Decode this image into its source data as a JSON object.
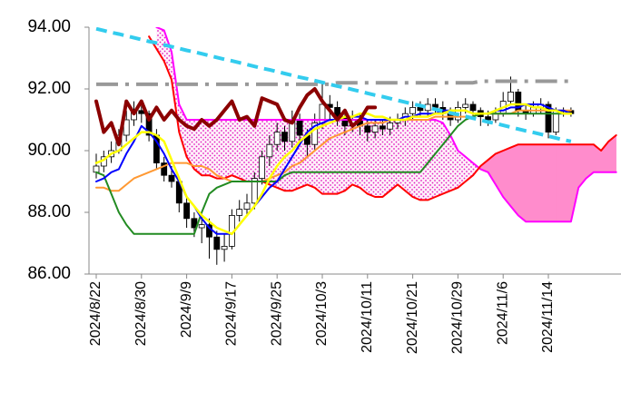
{
  "chart_data": {
    "type": "candlestick",
    "categories": [
      "2024/8/22",
      null,
      null,
      null,
      null,
      null,
      "2024/8/30",
      null,
      null,
      null,
      null,
      null,
      "2024/9/9",
      null,
      null,
      null,
      null,
      null,
      "2024/9/17",
      null,
      null,
      null,
      null,
      null,
      "2024/9/25",
      null,
      null,
      null,
      null,
      null,
      "2024/10/3",
      null,
      null,
      null,
      null,
      null,
      "2024/10/11",
      null,
      null,
      null,
      null,
      null,
      "2024/10/21",
      null,
      null,
      null,
      null,
      null,
      "2024/10/29",
      null,
      null,
      null,
      null,
      null,
      "2024/11/6",
      null,
      null,
      null,
      null,
      null,
      "2024/11/14",
      null,
      null,
      null,
      null,
      null,
      null,
      null,
      null,
      null
    ],
    "ylim": [
      86,
      94
    ],
    "yticks": [
      {
        "value": 86,
        "label": "86.00"
      },
      {
        "value": 88,
        "label": "88.00"
      },
      {
        "value": 90,
        "label": "90.00"
      },
      {
        "value": 92,
        "label": "92.00"
      },
      {
        "value": 94,
        "label": "94.00"
      }
    ],
    "up_color": "#ffffff",
    "down_color": "#000000",
    "ohlc": [
      [
        89.3,
        89.9,
        89.1,
        89.5
      ],
      [
        89.5,
        90.0,
        89.3,
        89.8
      ],
      [
        89.8,
        90.3,
        89.6,
        90.0
      ],
      [
        90.0,
        90.7,
        89.9,
        90.5
      ],
      [
        90.5,
        91.3,
        90.3,
        91.0
      ],
      [
        91.0,
        91.6,
        90.8,
        91.3
      ],
      [
        91.3,
        91.5,
        90.9,
        91.2
      ],
      [
        91.2,
        91.3,
        90.3,
        90.5
      ],
      [
        90.5,
        90.7,
        89.4,
        89.6
      ],
      [
        89.6,
        89.8,
        89.0,
        89.2
      ],
      [
        89.2,
        89.5,
        88.8,
        89.0
      ],
      [
        89.0,
        89.1,
        88.0,
        88.3
      ],
      [
        88.3,
        88.5,
        87.5,
        87.8
      ],
      [
        87.8,
        88.0,
        87.2,
        87.5
      ],
      [
        87.5,
        87.9,
        87.0,
        87.6
      ],
      [
        87.6,
        87.8,
        86.5,
        87.2
      ],
      [
        87.2,
        87.4,
        86.3,
        86.8
      ],
      [
        86.8,
        87.3,
        86.4,
        86.9
      ],
      [
        86.9,
        88.1,
        86.8,
        87.9
      ],
      [
        87.9,
        88.4,
        87.7,
        88.1
      ],
      [
        88.1,
        88.6,
        87.9,
        88.3
      ],
      [
        88.3,
        89.3,
        88.1,
        89.1
      ],
      [
        89.1,
        90.0,
        88.9,
        89.8
      ],
      [
        89.8,
        90.5,
        89.5,
        90.2
      ],
      [
        90.2,
        90.9,
        90.0,
        90.6
      ],
      [
        90.6,
        90.8,
        90.0,
        90.3
      ],
      [
        90.3,
        91.3,
        90.1,
        91.0
      ],
      [
        91.0,
        91.2,
        90.2,
        90.5
      ],
      [
        90.5,
        90.7,
        89.8,
        90.2
      ],
      [
        90.2,
        91.2,
        90.0,
        90.9
      ],
      [
        90.9,
        92.2,
        90.7,
        91.5
      ],
      [
        91.5,
        91.8,
        91.0,
        91.4
      ],
      [
        91.4,
        91.6,
        90.8,
        91.1
      ],
      [
        91.1,
        91.3,
        90.5,
        90.8
      ],
      [
        90.8,
        91.3,
        90.6,
        91.0
      ],
      [
        91.0,
        91.2,
        90.5,
        90.8
      ],
      [
        90.8,
        91.0,
        90.3,
        90.6
      ],
      [
        90.6,
        91.0,
        90.4,
        90.8
      ],
      [
        90.8,
        91.0,
        90.5,
        90.7
      ],
      [
        90.7,
        91.1,
        90.5,
        90.9
      ],
      [
        90.9,
        91.2,
        90.7,
        91.0
      ],
      [
        91.0,
        91.4,
        90.8,
        91.2
      ],
      [
        91.2,
        91.6,
        91.0,
        91.4
      ],
      [
        91.4,
        91.6,
        91.1,
        91.3
      ],
      [
        91.3,
        91.7,
        91.1,
        91.5
      ],
      [
        91.5,
        91.7,
        91.2,
        91.4
      ],
      [
        91.4,
        91.6,
        91.0,
        91.2
      ],
      [
        91.2,
        91.4,
        90.8,
        91.0
      ],
      [
        91.0,
        91.6,
        90.9,
        91.4
      ],
      [
        91.4,
        91.7,
        91.2,
        91.5
      ],
      [
        91.5,
        91.6,
        91.0,
        91.3
      ],
      [
        91.3,
        91.4,
        90.8,
        91.1
      ],
      [
        91.1,
        91.3,
        90.8,
        91.0
      ],
      [
        91.0,
        91.4,
        90.9,
        91.2
      ],
      [
        91.2,
        91.9,
        91.1,
        91.6
      ],
      [
        91.6,
        92.4,
        91.5,
        91.9
      ],
      [
        91.9,
        92.0,
        91.1,
        91.3
      ],
      [
        91.3,
        91.5,
        91.0,
        91.2
      ],
      [
        91.2,
        91.6,
        91.1,
        91.4
      ],
      [
        91.4,
        91.7,
        91.2,
        91.5
      ],
      [
        91.5,
        91.6,
        90.4,
        90.6
      ],
      [
        90.6,
        91.4,
        90.5,
        91.3
      ],
      [
        91.3,
        91.4,
        91.1,
        91.3
      ],
      [
        91.3,
        91.4,
        91.1,
        91.2
      ]
    ],
    "cloud_color": "#ff8ccc",
    "senkou_a": {
      "color": "#ff00ff",
      "values": [
        null,
        null,
        null,
        null,
        null,
        null,
        null,
        null,
        94.0,
        93.9,
        93.2,
        91.5,
        91.0,
        91.0,
        91.0,
        91.0,
        91.0,
        91.0,
        91.0,
        91.0,
        91.0,
        91.0,
        91.0,
        91.0,
        91.0,
        91.0,
        91.0,
        91.0,
        91.0,
        91.0,
        91.0,
        91.0,
        91.0,
        91.0,
        91.0,
        91.0,
        91.0,
        91.0,
        91.0,
        91.0,
        91.0,
        91.0,
        91.0,
        91.0,
        91.0,
        91.0,
        90.9,
        90.5,
        90.0,
        89.8,
        89.6,
        89.4,
        89.3,
        88.9,
        88.5,
        88.2,
        87.9,
        87.7,
        87.7,
        87.7,
        87.7,
        87.7,
        87.7,
        87.7,
        88.8,
        89.1,
        89.3,
        89.3,
        89.3,
        89.3
      ]
    },
    "senkou_b": {
      "color": "#ff0000",
      "values": [
        null,
        null,
        null,
        null,
        null,
        null,
        null,
        93.7,
        93.3,
        92.9,
        92.3,
        90.6,
        89.8,
        89.4,
        89.2,
        89.2,
        89.1,
        89.1,
        89.2,
        89.1,
        89.0,
        89.0,
        89.0,
        88.9,
        88.8,
        88.7,
        88.7,
        88.8,
        88.9,
        88.8,
        88.6,
        88.6,
        88.6,
        88.7,
        88.9,
        88.8,
        88.6,
        88.5,
        88.5,
        88.7,
        88.9,
        88.7,
        88.5,
        88.4,
        88.4,
        88.5,
        88.6,
        88.7,
        88.8,
        89.0,
        89.2,
        89.5,
        89.7,
        89.9,
        90.0,
        90.1,
        90.2,
        90.2,
        90.2,
        90.2,
        90.2,
        90.2,
        90.2,
        90.2,
        90.2,
        90.2,
        90.2,
        90.0,
        90.3,
        90.5
      ]
    },
    "lines": [
      {
        "color": "#ff9933",
        "values": [
          88.8,
          88.8,
          88.7,
          88.7,
          88.9,
          89.1,
          89.2,
          89.3,
          89.4,
          89.5,
          89.6,
          89.6,
          89.6,
          89.5,
          89.5,
          89.4,
          89.2,
          89.1,
          89.0,
          89.0,
          89.0,
          89.0,
          89.0,
          89.1,
          89.2,
          89.3,
          89.5,
          89.6,
          89.8,
          90.0,
          90.2,
          90.4,
          90.5,
          90.6,
          90.7,
          90.8,
          90.9,
          90.9,
          90.9,
          91.0,
          91.0,
          91.0,
          91.0,
          91.0,
          91.0,
          91.1,
          91.1,
          91.1,
          91.1,
          91.1,
          91.1,
          91.2,
          91.2,
          91.2,
          91.2,
          91.2,
          91.3,
          91.3,
          91.3,
          91.3,
          91.3,
          91.3,
          91.3,
          91.3
        ]
      },
      {
        "color": "#228b22",
        "values": [
          89.3,
          89.2,
          88.6,
          88.0,
          87.6,
          87.3,
          87.3,
          87.3,
          87.3,
          87.3,
          87.3,
          87.3,
          87.3,
          87.3,
          88.0,
          88.6,
          88.8,
          88.9,
          89.0,
          89.0,
          89.0,
          89.0,
          89.0,
          89.0,
          89.0,
          89.2,
          89.3,
          89.3,
          89.3,
          89.3,
          89.3,
          89.3,
          89.3,
          89.3,
          89.3,
          89.3,
          89.3,
          89.3,
          89.3,
          89.3,
          89.3,
          89.3,
          89.3,
          89.3,
          89.6,
          89.9,
          90.2,
          90.5,
          90.8,
          91.0,
          91.1,
          91.2,
          91.2,
          91.2,
          91.2,
          91.2,
          91.2,
          91.2,
          91.2,
          91.2,
          91.2,
          91.2,
          91.2,
          91.2
        ]
      },
      {
        "color": "#0000ff",
        "values": [
          89.0,
          89.1,
          89.3,
          89.4,
          89.9,
          90.3,
          90.8,
          90.6,
          90.3,
          89.9,
          89.4,
          89.0,
          88.5,
          88.2,
          87.8,
          87.5,
          87.3,
          87.3,
          87.3,
          87.6,
          87.9,
          88.2,
          88.5,
          88.8,
          89.0,
          89.4,
          89.8,
          90.2,
          90.6,
          90.8,
          90.9,
          91.0,
          91.0,
          91.1,
          91.1,
          91.1,
          91.0,
          91.0,
          91.0,
          91.0,
          91.0,
          91.1,
          91.1,
          91.2,
          91.2,
          91.2,
          91.3,
          91.3,
          91.3,
          91.3,
          91.2,
          91.2,
          91.2,
          91.3,
          91.3,
          91.4,
          91.4,
          91.5,
          91.5,
          91.5,
          91.4,
          91.3,
          91.3,
          91.2
        ]
      },
      {
        "color": "#ffff00",
        "values": [
          89.6,
          89.7,
          89.9,
          90.0,
          90.2,
          90.4,
          90.6,
          90.6,
          90.5,
          90.3,
          89.7,
          89.1,
          88.5,
          88.2,
          87.9,
          87.7,
          87.5,
          87.4,
          87.3,
          87.6,
          87.9,
          88.2,
          88.6,
          89.1,
          89.5,
          89.8,
          90.0,
          90.3,
          90.5,
          90.7,
          90.8,
          90.9,
          91.0,
          91.1,
          91.1,
          91.2,
          91.2,
          91.1,
          91.1,
          91.0,
          91.0,
          91.0,
          91.1,
          91.1,
          91.1,
          91.2,
          91.2,
          91.3,
          91.3,
          91.3,
          91.2,
          91.2,
          91.2,
          91.3,
          91.4,
          91.5,
          91.5,
          91.5,
          91.4,
          91.4,
          91.3,
          91.3,
          91.2,
          91.2
        ]
      },
      {
        "color": "#8b0000",
        "values": [
          91.6,
          90.6,
          90.9,
          90.2,
          91.6,
          91.2,
          91.6,
          91.0,
          91.4,
          91.0,
          91.3,
          91.0,
          90.8,
          90.7,
          91.0,
          90.8,
          91.0,
          91.3,
          91.6,
          91.0,
          91.1,
          90.8,
          91.7,
          91.6,
          91.5,
          91.0,
          90.9,
          91.4,
          91.8,
          92.0,
          91.6,
          91.3,
          91.0,
          91.3,
          90.8,
          91.0,
          91.4,
          91.4
        ]
      }
    ],
    "trendlines": [
      {
        "color": "#999999",
        "values": [
          92.15,
          92.15,
          92.15,
          92.15,
          92.15,
          92.15,
          92.15,
          92.15,
          92.15,
          92.15,
          92.15,
          92.15,
          92.15,
          92.15,
          92.15,
          92.15,
          92.15,
          92.15,
          92.15,
          92.15,
          92.15,
          92.15,
          92.15,
          92.15,
          92.15,
          92.15,
          92.15,
          92.15,
          92.15,
          92.15,
          92.15,
          92.15,
          92.2,
          92.2,
          92.2,
          92.2,
          92.2,
          92.2,
          92.2,
          92.2,
          92.2,
          92.2,
          92.2,
          92.2,
          92.2,
          92.2,
          92.2,
          92.2,
          92.2,
          92.2,
          92.2,
          92.25,
          92.25,
          92.25,
          92.25,
          92.25,
          92.25,
          92.25,
          92.25,
          92.25,
          92.25,
          92.25,
          92.25,
          92.25
        ]
      },
      {
        "color": "#33ccee",
        "values": [
          93.95,
          93.89,
          93.83,
          93.78,
          93.72,
          93.66,
          93.6,
          93.54,
          93.49,
          93.43,
          93.37,
          93.31,
          93.25,
          93.2,
          93.14,
          93.08,
          93.02,
          92.96,
          92.91,
          92.85,
          92.79,
          92.73,
          92.67,
          92.62,
          92.56,
          92.5,
          92.44,
          92.38,
          92.33,
          92.27,
          92.21,
          92.15,
          92.09,
          92.04,
          91.98,
          91.92,
          91.86,
          91.8,
          91.75,
          91.69,
          91.63,
          91.57,
          91.51,
          91.46,
          91.4,
          91.34,
          91.28,
          91.22,
          91.17,
          91.11,
          91.05,
          90.99,
          90.93,
          90.88,
          90.82,
          90.76,
          90.7,
          90.64,
          90.59,
          90.53,
          90.47,
          90.41,
          90.35,
          90.3
        ]
      }
    ]
  }
}
